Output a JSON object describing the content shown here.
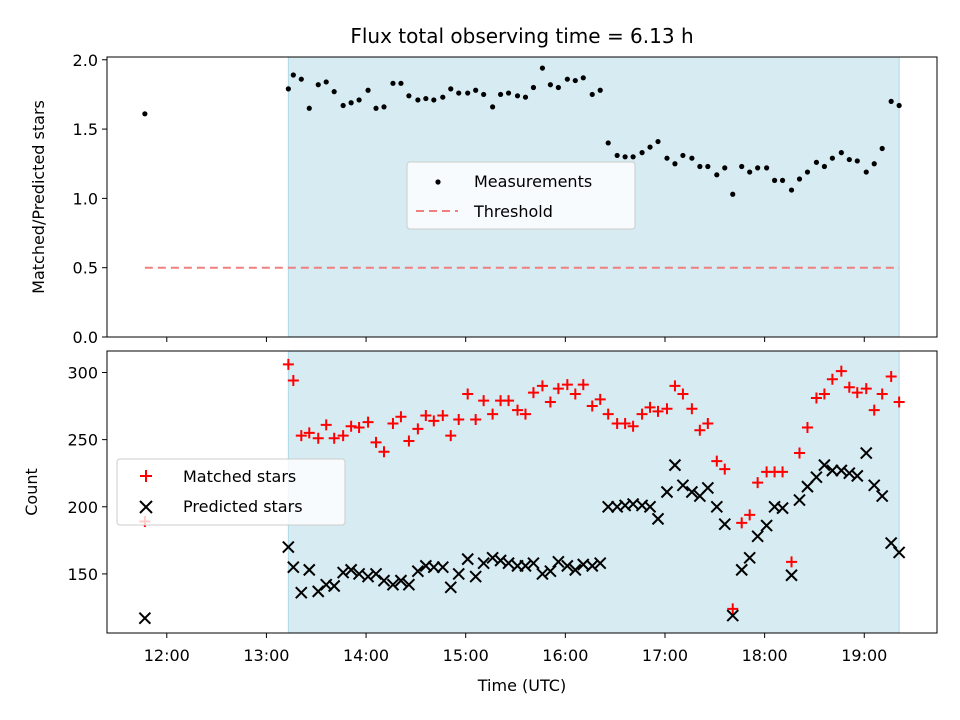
{
  "title": "Flux total observing time = 6.13 h",
  "colors": {
    "shade": "#add8e6",
    "measurements": "#000000",
    "threshold": "#f08080",
    "matched": "#ff0000",
    "predicted": "#000000"
  },
  "chart_data": [
    {
      "type": "scatter",
      "panel": "top",
      "title": "Flux total observing time = 6.13 h",
      "xlabel": "",
      "ylabel": "Matched/Predicted stars",
      "xlim": [
        11.4,
        19.73
      ],
      "ylim": [
        0.0,
        2.02
      ],
      "yticks": [
        0.0,
        0.5,
        1.0,
        1.5,
        2.0
      ],
      "yticklabels": [
        "0.0",
        "0.5",
        "1.0",
        "1.5",
        "2.0"
      ],
      "shaded_span": [
        13.22,
        19.35
      ],
      "grid": false,
      "legend_position": "center",
      "legend": [
        "Measurements",
        "Threshold"
      ],
      "series": [
        {
          "name": "Measurements",
          "kind": "dots",
          "x": [
            11.78,
            13.22,
            13.27,
            13.35,
            13.43,
            13.52,
            13.6,
            13.68,
            13.77,
            13.85,
            13.93,
            14.02,
            14.1,
            14.18,
            14.27,
            14.35,
            14.43,
            14.52,
            14.6,
            14.68,
            14.77,
            14.85,
            14.93,
            15.02,
            15.1,
            15.18,
            15.27,
            15.35,
            15.43,
            15.52,
            15.6,
            15.68,
            15.77,
            15.85,
            15.93,
            16.02,
            16.1,
            16.18,
            16.27,
            16.35,
            16.43,
            16.52,
            16.6,
            16.68,
            16.77,
            16.85,
            16.93,
            17.02,
            17.1,
            17.18,
            17.27,
            17.35,
            17.43,
            17.52,
            17.6,
            17.68,
            17.77,
            17.85,
            17.93,
            18.02,
            18.1,
            18.18,
            18.27,
            18.35,
            18.43,
            18.52,
            18.6,
            18.68,
            18.77,
            18.85,
            18.93,
            19.02,
            19.1,
            19.18,
            19.27,
            19.35
          ],
          "y": [
            1.61,
            1.79,
            1.89,
            1.86,
            1.65,
            1.82,
            1.84,
            1.77,
            1.67,
            1.69,
            1.71,
            1.78,
            1.65,
            1.66,
            1.83,
            1.83,
            1.74,
            1.71,
            1.72,
            1.71,
            1.73,
            1.79,
            1.76,
            1.76,
            1.78,
            1.75,
            1.66,
            1.75,
            1.76,
            1.74,
            1.73,
            1.8,
            1.94,
            1.82,
            1.8,
            1.86,
            1.85,
            1.87,
            1.75,
            1.78,
            1.4,
            1.31,
            1.3,
            1.3,
            1.33,
            1.37,
            1.41,
            1.29,
            1.25,
            1.31,
            1.29,
            1.23,
            1.23,
            1.17,
            1.22,
            1.03,
            1.23,
            1.19,
            1.22,
            1.22,
            1.13,
            1.13,
            1.06,
            1.14,
            1.19,
            1.26,
            1.23,
            1.29,
            1.33,
            1.28,
            1.27,
            1.19,
            1.25,
            1.36,
            1.7,
            1.67
          ]
        },
        {
          "name": "Threshold",
          "kind": "dashed-line",
          "x": [
            11.78,
            19.35
          ],
          "y": [
            0.5,
            0.5
          ]
        }
      ]
    },
    {
      "type": "scatter",
      "panel": "bottom",
      "xlabel": "Time (UTC)",
      "ylabel": "Count",
      "xlim": [
        11.4,
        19.73
      ],
      "ylim": [
        106,
        316
      ],
      "yticks": [
        150,
        200,
        250,
        300
      ],
      "yticklabels": [
        "150",
        "200",
        "250",
        "300"
      ],
      "xticks": [
        12,
        13,
        14,
        15,
        16,
        17,
        18,
        19
      ],
      "xticklabels": [
        "12:00",
        "13:00",
        "14:00",
        "15:00",
        "16:00",
        "17:00",
        "18:00",
        "19:00"
      ],
      "shaded_span": [
        13.22,
        19.35
      ],
      "grid": false,
      "legend_position": "center-left",
      "legend": [
        "Matched stars",
        "Predicted stars"
      ],
      "series": [
        {
          "name": "Matched stars",
          "kind": "plus",
          "x": [
            11.78,
            13.22,
            13.27,
            13.35,
            13.43,
            13.52,
            13.6,
            13.68,
            13.77,
            13.85,
            13.93,
            14.02,
            14.1,
            14.18,
            14.27,
            14.35,
            14.43,
            14.52,
            14.6,
            14.68,
            14.77,
            14.85,
            14.93,
            15.02,
            15.1,
            15.18,
            15.27,
            15.35,
            15.43,
            15.52,
            15.6,
            15.68,
            15.77,
            15.85,
            15.93,
            16.02,
            16.1,
            16.18,
            16.27,
            16.35,
            16.43,
            16.52,
            16.6,
            16.68,
            16.77,
            16.85,
            16.93,
            17.02,
            17.1,
            17.18,
            17.27,
            17.35,
            17.43,
            17.52,
            17.6,
            17.68,
            17.77,
            17.85,
            17.93,
            18.02,
            18.1,
            18.18,
            18.27,
            18.35,
            18.43,
            18.52,
            18.6,
            18.68,
            18.77,
            18.85,
            18.93,
            19.02,
            19.1,
            19.18,
            19.27,
            19.35
          ],
          "y": [
            189,
            306,
            294,
            253,
            255,
            251,
            261,
            251,
            253,
            260,
            259,
            263,
            248,
            241,
            262,
            267,
            249,
            258,
            268,
            264,
            268,
            253,
            265,
            284,
            265,
            279,
            269,
            279,
            279,
            272,
            269,
            285,
            290,
            278,
            288,
            291,
            284,
            291,
            275,
            280,
            269,
            262,
            262,
            260,
            269,
            274,
            271,
            273,
            290,
            284,
            273,
            257,
            262,
            234,
            228,
            124,
            188,
            194,
            218,
            226,
            226,
            226,
            159,
            240,
            259,
            281,
            284,
            295,
            301,
            289,
            285,
            288,
            272,
            284,
            297,
            278
          ]
        },
        {
          "name": "Predicted stars",
          "kind": "x",
          "x": [
            11.78,
            13.22,
            13.27,
            13.35,
            13.43,
            13.52,
            13.6,
            13.68,
            13.77,
            13.85,
            13.93,
            14.02,
            14.1,
            14.18,
            14.27,
            14.35,
            14.43,
            14.52,
            14.6,
            14.68,
            14.77,
            14.85,
            14.93,
            15.02,
            15.1,
            15.18,
            15.27,
            15.35,
            15.43,
            15.52,
            15.6,
            15.68,
            15.77,
            15.85,
            15.93,
            16.02,
            16.1,
            16.18,
            16.27,
            16.35,
            16.43,
            16.52,
            16.6,
            16.68,
            16.77,
            16.85,
            16.93,
            17.02,
            17.1,
            17.18,
            17.27,
            17.35,
            17.43,
            17.52,
            17.6,
            17.68,
            17.77,
            17.85,
            17.93,
            18.02,
            18.1,
            18.18,
            18.27,
            18.35,
            18.43,
            18.52,
            18.6,
            18.68,
            18.77,
            18.85,
            18.93,
            19.02,
            19.1,
            19.18,
            19.27,
            19.35
          ],
          "y": [
            117,
            170,
            155,
            136,
            153,
            137,
            142,
            141,
            151,
            153,
            150,
            148,
            150,
            145,
            142,
            145,
            142,
            152,
            156,
            155,
            155,
            140,
            150,
            161,
            148,
            158,
            162,
            160,
            158,
            156,
            156,
            158,
            150,
            152,
            159,
            156,
            153,
            157,
            156,
            158,
            200,
            200,
            201,
            202,
            201,
            200,
            191,
            211,
            231,
            216,
            211,
            208,
            214,
            200,
            187,
            119,
            153,
            162,
            178,
            186,
            200,
            199,
            149,
            205,
            215,
            222,
            231,
            227,
            227,
            225,
            223,
            240,
            216,
            208,
            173,
            166
          ]
        }
      ]
    }
  ]
}
